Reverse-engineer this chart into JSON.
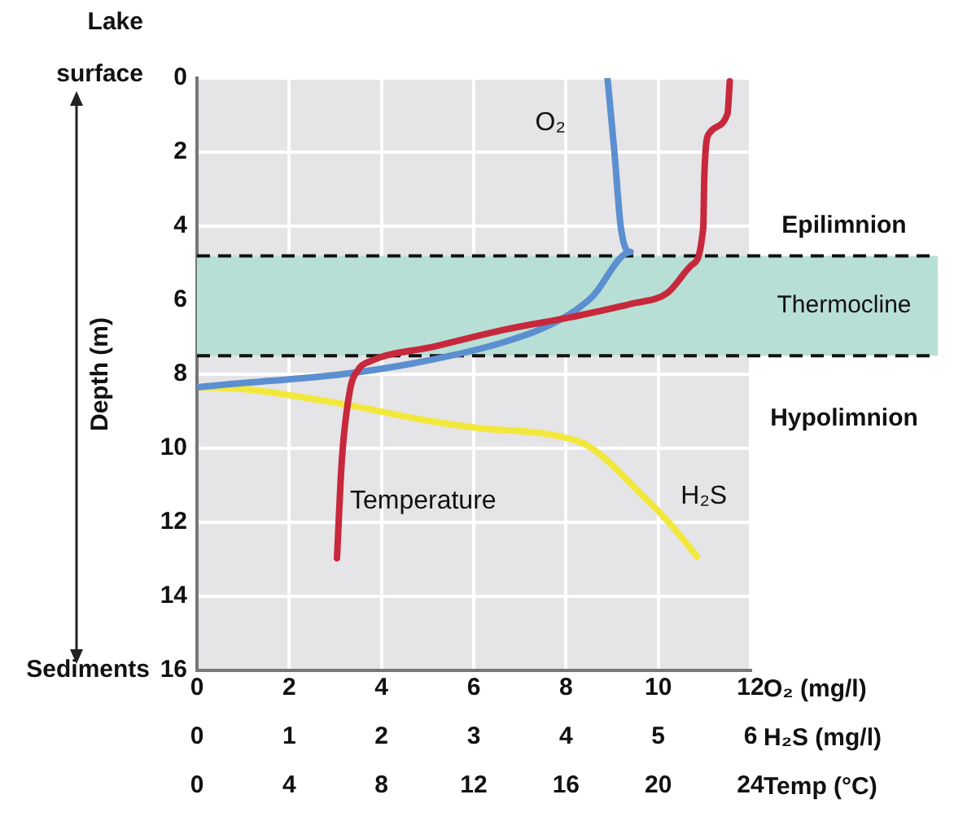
{
  "chart_data": [
    {
      "type": "line",
      "ylabel": "Depth (m)",
      "xlabel": "O₂ (mg/l)",
      "x2label": "H₂S (mg/l)",
      "xlim": [
        0,
        12
      ],
      "xticks": [
        0,
        2,
        4,
        6,
        8,
        10,
        12
      ],
      "x2lim": [
        0,
        6
      ],
      "x2ticks": [
        0,
        1,
        2,
        3,
        4,
        5,
        6
      ],
      "ylim": [
        16,
        0
      ],
      "yticks": [
        0,
        2,
        4,
        6,
        8,
        10,
        12,
        14,
        16
      ],
      "grid": true,
      "line_style": "solid",
      "series": [
        {
          "name": "O₂",
          "color": "#5b8fd0",
          "x": [
            8.9,
            9.05,
            9.19,
            9.4,
            8.55,
            7.84,
            6.68,
            4.91,
            3.14,
            0.78,
            0
          ],
          "values": [
            0,
            2,
            4.04,
            4.7,
            5.93,
            6.55,
            7.12,
            7.65,
            8,
            8.26,
            8.35
          ]
        },
        {
          "name": "H₂S",
          "color": "#f2e83c",
          "axis": "x2",
          "x": [
            0.02,
            0.51,
            1.57,
            2.45,
            3.04,
            3.92,
            4.27,
            4.8,
            5.1,
            5.42
          ],
          "values": [
            8.35,
            8.4,
            8.8,
            9.23,
            9.45,
            9.67,
            9.98,
            11.2,
            11.96,
            12.92
          ]
        }
      ],
      "bands": [
        {
          "axis": "y",
          "from": 4.8,
          "to": 7.5,
          "label": "Thermocline",
          "color": "#b8dfd6"
        }
      ],
      "ref_lines": [
        {
          "axis": "y",
          "value": 4.8,
          "line_style": "dashed",
          "color": "#111111"
        },
        {
          "axis": "y",
          "value": 7.5,
          "line_style": "dashed",
          "color": "#111111"
        }
      ],
      "annotations": [
        "Lake surface",
        "Sediments",
        "Epilimnion",
        "Hypolimnion"
      ]
    },
    {
      "type": "line",
      "xlabel": "Temp (°C)",
      "xlim": [
        0,
        24
      ],
      "xticks": [
        0,
        4,
        8,
        12,
        16,
        20,
        24
      ],
      "ylim": [
        16,
        0
      ],
      "tick_labels": "x",
      "line_style": "solid",
      "series": [
        {
          "name": "Temperature",
          "color": "#c8283c",
          "x": [
            23.1,
            23,
            22.2,
            22,
            21.95,
            21.45,
            20.4,
            18.8,
            16.2,
            13.3,
            10.3,
            7.5,
            7,
            6.63,
            6.28,
            6.07
          ],
          "values": [
            0.09,
            0.97,
            1.5,
            2.6,
            4.04,
            5.05,
            5.8,
            6.1,
            6.46,
            6.8,
            7.25,
            7.65,
            7.87,
            8.44,
            10.33,
            12.97
          ]
        }
      ]
    }
  ]
}
